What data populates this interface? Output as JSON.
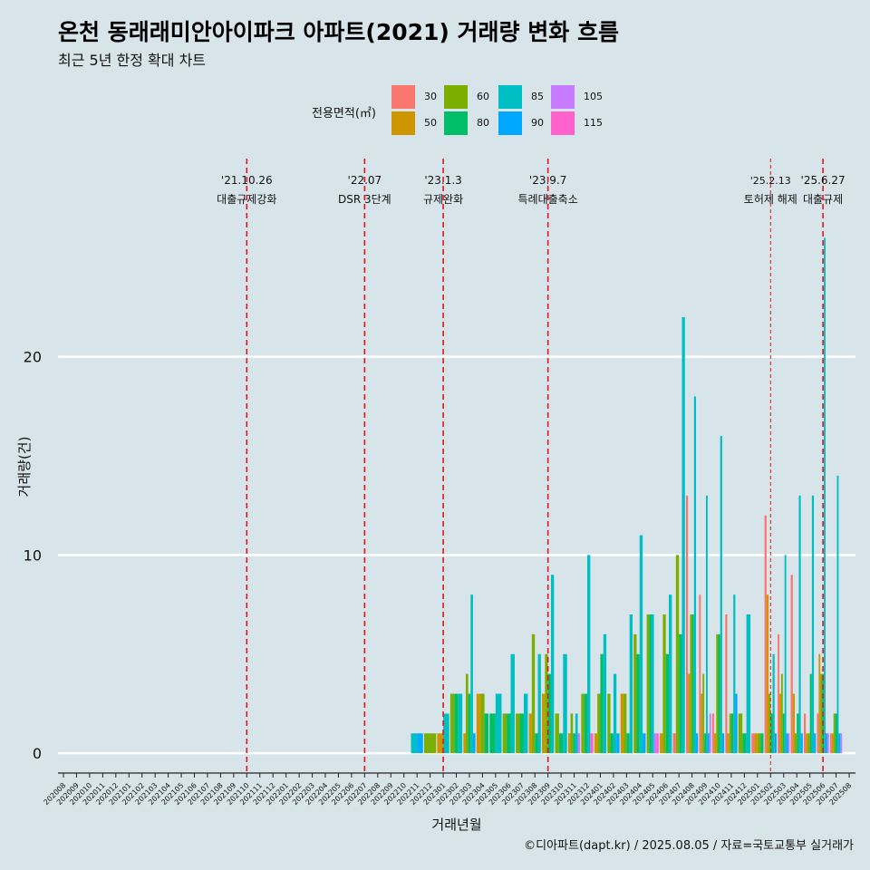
{
  "title": "온천 동래래미안아이파크 아파트(2021) 거래량 변화 흐름",
  "subtitle": "최근 5년 한정 확대 차트",
  "caption": "©디아파트(dapt.kr) / 2025.08.05 / 자료=국토교통부 실거래가",
  "legend": {
    "title": "전용면적(㎡)",
    "items": [
      {
        "label": "30",
        "color": "#F8766D"
      },
      {
        "label": "50",
        "color": "#CD9600"
      },
      {
        "label": "60",
        "color": "#7CAE00"
      },
      {
        "label": "80",
        "color": "#00BE67"
      },
      {
        "label": "85",
        "color": "#00BFC4"
      },
      {
        "label": "90",
        "color": "#00A9FF"
      },
      {
        "label": "105",
        "color": "#C77CFF"
      },
      {
        "label": "115",
        "color": "#FF61CC"
      }
    ]
  },
  "chart_data": {
    "type": "bar",
    "xlabel": "거래년월",
    "ylabel": "거래량(건)",
    "ylim": [
      -1,
      30
    ],
    "yticks": [
      0,
      10,
      20
    ],
    "grid": "horizontal",
    "categories": [
      "202008",
      "202009",
      "202010",
      "202011",
      "202012",
      "202101",
      "202102",
      "202103",
      "202104",
      "202105",
      "202106",
      "202107",
      "202108",
      "202109",
      "202110",
      "202111",
      "202112",
      "202201",
      "202202",
      "202203",
      "202204",
      "202205",
      "202206",
      "202207",
      "202208",
      "202209",
      "202210",
      "202211",
      "202212",
      "202301",
      "202302",
      "202303",
      "202304",
      "202305",
      "202306",
      "202307",
      "202308",
      "202309",
      "202310",
      "202311",
      "202312",
      "202401",
      "202402",
      "202403",
      "202404",
      "202405",
      "202406",
      "202407",
      "202408",
      "202409",
      "202410",
      "202411",
      "202412",
      "202501",
      "202502",
      "202503",
      "202504",
      "202505",
      "202506",
      "202507",
      "202508"
    ],
    "series": [
      {
        "name": "30",
        "values": {
          "202407": 1,
          "202408": 13,
          "202409": 8,
          "202410": 2,
          "202411": 7,
          "202501": 1,
          "202502": 12,
          "202503": 6,
          "202504": 9,
          "202505": 2,
          "202506": 2,
          "202507": 1
        }
      },
      {
        "name": "50",
        "values": {
          "202301": 1,
          "202303": 1,
          "202304": 3,
          "202308": 2,
          "202309": 3,
          "202311": 1,
          "202401": 1,
          "202403": 3,
          "202406": 1,
          "202408": 4,
          "202409": 3,
          "202410": 1,
          "202411": 1,
          "202501": 1,
          "202502": 8,
          "202503": 3,
          "202504": 3,
          "202505": 1,
          "202506": 5,
          "202507": 1
        }
      },
      {
        "name": "60",
        "values": {
          "202212": 1,
          "202302": 3,
          "202303": 4,
          "202304": 3,
          "202306": 2,
          "202307": 2,
          "202308": 6,
          "202309": 5,
          "202310": 2,
          "202311": 2,
          "202312": 3,
          "202401": 3,
          "202402": 3,
          "202403": 3,
          "202404": 6,
          "202405": 7,
          "202406": 7,
          "202407": 10,
          "202408": 7,
          "202409": 4,
          "202410": 6,
          "202411": 2,
          "202412": 2,
          "202501": 1,
          "202502": 3,
          "202503": 4,
          "202504": 1,
          "202505": 1,
          "202506": 4,
          "202507": 2
        }
      },
      {
        "name": "80",
        "values": {
          "202302": 3,
          "202303": 3,
          "202304": 2,
          "202305": 2,
          "202306": 2,
          "202307": 2,
          "202308": 1,
          "202309": 4,
          "202310": 1,
          "202311": 1,
          "202312": 3,
          "202401": 5,
          "202402": 1,
          "202403": 1,
          "202404": 5,
          "202405": 7,
          "202406": 5,
          "202407": 6,
          "202408": 7,
          "202409": 1,
          "202410": 6,
          "202411": 2,
          "202412": 1,
          "202501": 1,
          "202502": 2,
          "202503": 2,
          "202504": 2,
          "202505": 4,
          "202506": 4,
          "202507": 2
        }
      },
      {
        "name": "85",
        "values": {
          "202211": 1,
          "202301": 2,
          "202302": 3,
          "202303": 8,
          "202305": 3,
          "202306": 5,
          "202307": 3,
          "202308": 5,
          "202309": 9,
          "202310": 5,
          "202311": 2,
          "202312": 10,
          "202401": 6,
          "202402": 4,
          "202403": 7,
          "202404": 11,
          "202405": 7,
          "202406": 8,
          "202407": 22,
          "202408": 18,
          "202409": 13,
          "202410": 16,
          "202411": 8,
          "202412": 7,
          "202502": 5,
          "202503": 10,
          "202504": 13,
          "202505": 13,
          "202506": 26,
          "202507": 14
        }
      },
      {
        "name": "90",
        "values": {
          "202211": 1,
          "202303": 1,
          "202402": 1,
          "202404": 1,
          "202408": 1,
          "202409": 1,
          "202410": 1,
          "202411": 3,
          "202502": 1,
          "202503": 1,
          "202504": 1,
          "202505": 1,
          "202506": 1,
          "202507": 1
        }
      },
      {
        "name": "105",
        "values": {
          "202311": 1,
          "202405": 1,
          "202409": 2,
          "202503": 1,
          "202506": 1,
          "202507": 1
        }
      },
      {
        "name": "115",
        "values": {
          "202312": 1,
          "202405": 1
        }
      }
    ],
    "events": [
      {
        "month": "202110",
        "date": "'21.10.26",
        "label": "대출규제강화",
        "style": "dashed"
      },
      {
        "month": "202207",
        "date": "'22.07",
        "label": "DSR 3단계",
        "style": "dashed"
      },
      {
        "month": "202301",
        "date": "'23.1.3",
        "label": "규제완화",
        "style": "dashed"
      },
      {
        "month": "202309",
        "date": "'23.9.7",
        "label": "특례대출축소",
        "style": "dashed"
      },
      {
        "month": "202502",
        "date": "'25.2.13",
        "label": "토허제 해제",
        "style": "dashed-fine"
      },
      {
        "month": "202506",
        "date": "'25.6.27",
        "label": "대출규제",
        "style": "dashed"
      }
    ]
  }
}
